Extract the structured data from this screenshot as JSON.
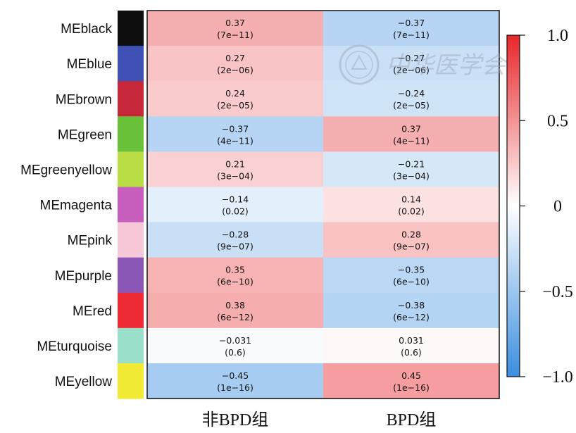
{
  "chart_data": {
    "type": "heatmap",
    "rows": [
      "MEblack",
      "MEblue",
      "MEbrown",
      "MEgreen",
      "MEgreenyellow",
      "MEmagenta",
      "MEpink",
      "MEpurple",
      "MEred",
      "MEturquoise",
      "MEyellow"
    ],
    "module_colors": [
      "#0e0e0e",
      "#3f51b5",
      "#c6283a",
      "#69c23a",
      "#b9dd45",
      "#c75dbd",
      "#f6c7d6",
      "#8b57b7",
      "#ee2a35",
      "#9adfc9",
      "#f1ea35"
    ],
    "columns": [
      "非BPD组",
      "BPD组"
    ],
    "values": [
      [
        0.37,
        -0.37
      ],
      [
        0.27,
        -0.27
      ],
      [
        0.24,
        -0.24
      ],
      [
        -0.37,
        0.37
      ],
      [
        0.21,
        -0.21
      ],
      [
        -0.14,
        0.14
      ],
      [
        -0.28,
        0.28
      ],
      [
        0.35,
        -0.35
      ],
      [
        0.38,
        -0.38
      ],
      [
        -0.031,
        0.031
      ],
      [
        -0.45,
        0.45
      ]
    ],
    "value_labels": [
      [
        "0.37",
        "−0.37"
      ],
      [
        "0.27",
        "−0.27"
      ],
      [
        "0.24",
        "−0.24"
      ],
      [
        "−0.37",
        "0.37"
      ],
      [
        "0.21",
        "−0.21"
      ],
      [
        "−0.14",
        "0.14"
      ],
      [
        "−0.28",
        "0.28"
      ],
      [
        "0.35",
        "−0.35"
      ],
      [
        "0.38",
        "−0.38"
      ],
      [
        "−0.031",
        "0.031"
      ],
      [
        "−0.45",
        "0.45"
      ]
    ],
    "p_labels": [
      [
        "(7e−11)",
        "(7e−11)"
      ],
      [
        "(2e−06)",
        "(2e−06)"
      ],
      [
        "(2e−05)",
        "(2e−05)"
      ],
      [
        "(4e−11)",
        "(4e−11)"
      ],
      [
        "(3e−04)",
        "(3e−04)"
      ],
      [
        "(0.02)",
        "(0.02)"
      ],
      [
        "(9e−07)",
        "(9e−07)"
      ],
      [
        "(6e−10)",
        "(6e−10)"
      ],
      [
        "(6e−12)",
        "(6e−12)"
      ],
      [
        "(0.6)",
        "(0.6)"
      ],
      [
        "(1e−16)",
        "(1e−16)"
      ]
    ],
    "colorbar": {
      "range": [
        -1,
        1
      ],
      "ticks": [
        1.0,
        0.5,
        0,
        -0.5,
        -1.0
      ],
      "tick_labels": [
        "1.0",
        "0.5",
        "0",
        "−0.5",
        "−1.0"
      ],
      "colors": {
        "low": "#3a8ee0",
        "mid": "#ffffff",
        "high": "#e8262a"
      }
    }
  }
}
